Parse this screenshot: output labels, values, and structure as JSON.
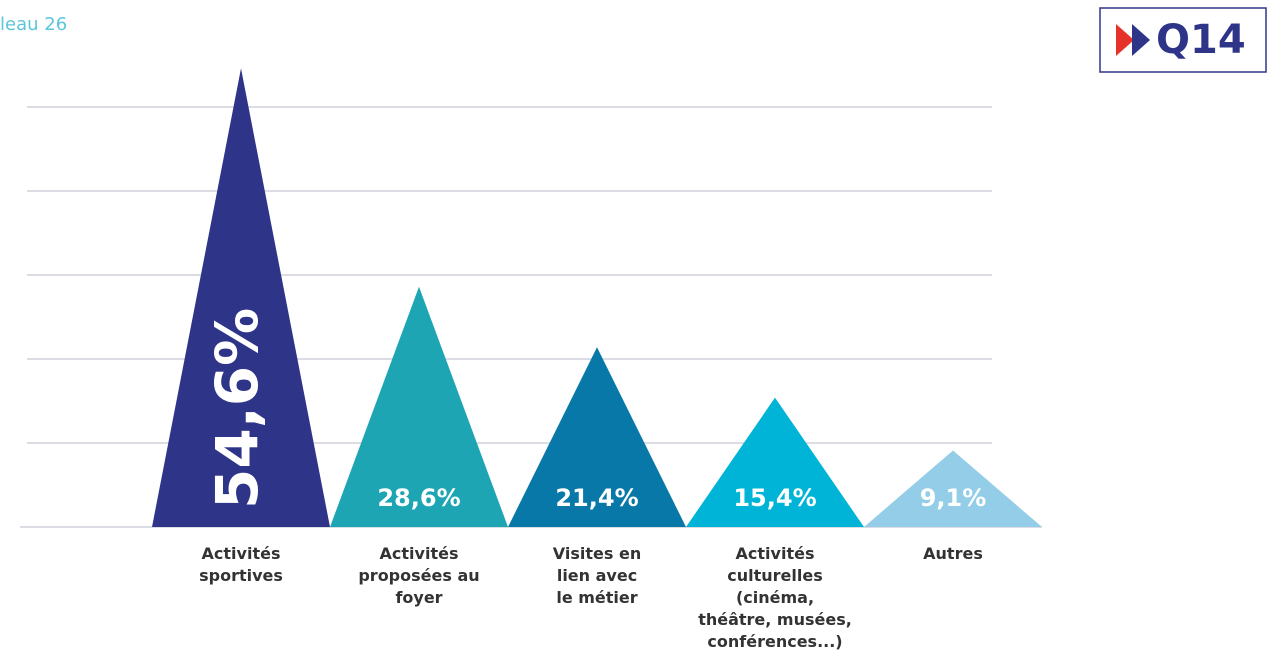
{
  "chart_data": {
    "type": "triangle_bar",
    "title": "leau 26",
    "badge": "Q14",
    "categories": [
      "Activités\nsportives",
      "Activités\nproposées au\nfoyer",
      "Visites en\nlien avec\nle métier",
      "Activités\nculturelles\n(cinéma,\nthéâtre, musées,\nconférences...)",
      "Autres"
    ],
    "values": [
      54.6,
      28.6,
      21.4,
      15.4,
      9.1
    ],
    "value_labels": [
      "54,6%",
      "28,6%",
      "21,4%",
      "15,4%",
      "9,1%"
    ],
    "colors": [
      "#2e3589",
      "#1ea5b4",
      "#0878a8",
      "#00b4d8",
      "#93cde8"
    ],
    "ylim": [
      0,
      60
    ],
    "yticks": [
      0,
      10,
      20,
      30,
      40,
      50
    ],
    "grid": true
  }
}
